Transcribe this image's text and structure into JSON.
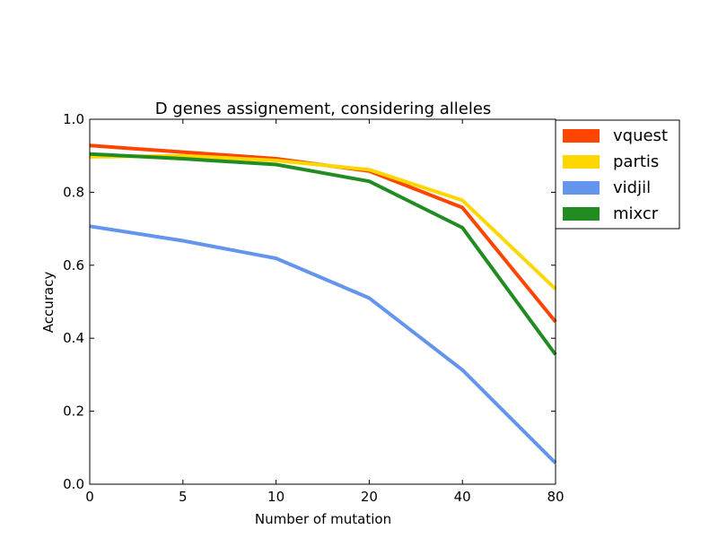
{
  "chart_data": {
    "type": "line",
    "title": "D genes assignement, considering alleles",
    "xlabel": "Number of mutation",
    "ylabel": "Accuracy",
    "ylim": [
      0.0,
      1.0
    ],
    "x_tick_labels": [
      "0",
      "5",
      "10",
      "20",
      "40",
      "80"
    ],
    "y_tick_labels": [
      "0.0",
      "0.2",
      "0.4",
      "0.6",
      "0.8",
      "1.0"
    ],
    "y_ticks": [
      0.0,
      0.2,
      0.4,
      0.6,
      0.8,
      1.0
    ],
    "grid": false,
    "legend_position": "top-right-outside",
    "series": [
      {
        "name": "vquest",
        "color": "#FF4500",
        "values": [
          0.928,
          0.91,
          0.892,
          0.858,
          0.758,
          0.445
        ]
      },
      {
        "name": "partis",
        "color": "#FFD700",
        "values": [
          0.897,
          0.9,
          0.887,
          0.862,
          0.778,
          0.535
        ]
      },
      {
        "name": "vidjil",
        "color": "#6495ED",
        "values": [
          0.707,
          0.667,
          0.619,
          0.51,
          0.313,
          0.058
        ]
      },
      {
        "name": "mixcr",
        "color": "#228B22",
        "values": [
          0.905,
          0.892,
          0.876,
          0.83,
          0.703,
          0.355
        ]
      }
    ]
  }
}
